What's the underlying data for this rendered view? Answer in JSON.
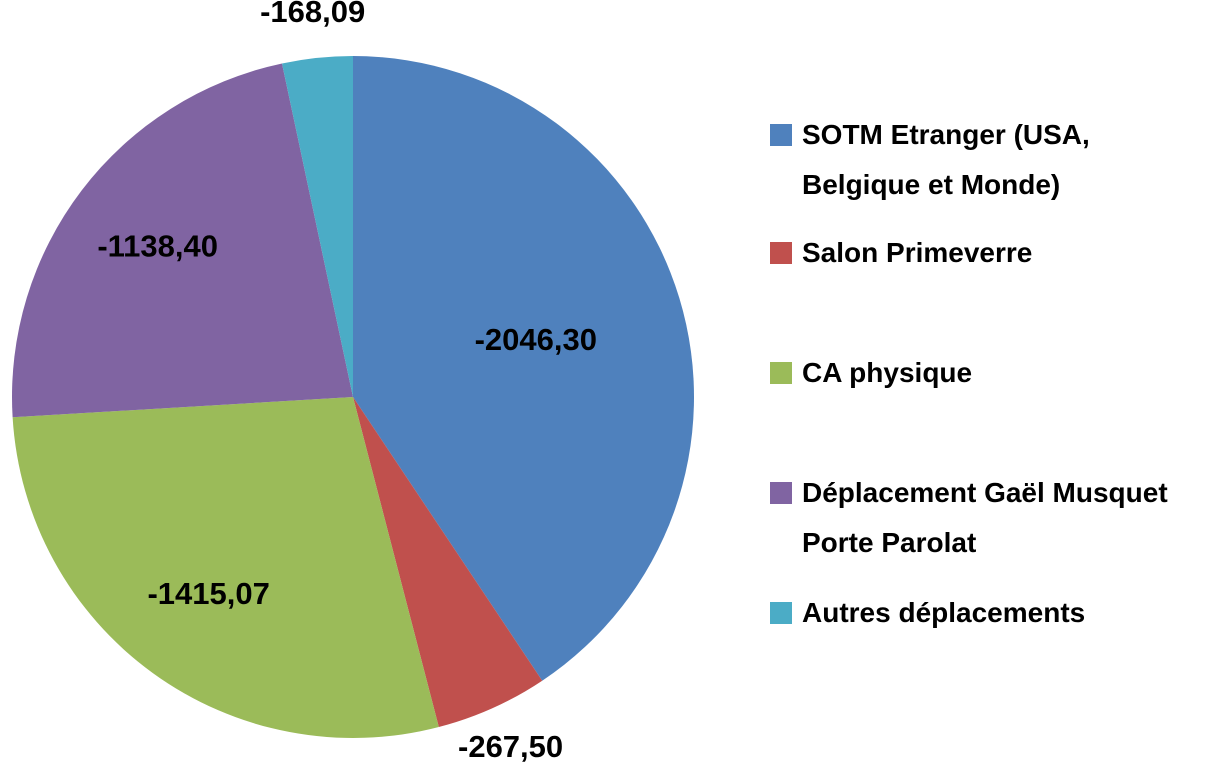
{
  "chart_data": {
    "type": "pie",
    "categories": [
      "SOTM Etranger (USA, Belgique et Monde)",
      "Salon Primeverre",
      "CA physique",
      "Déplacement Gaël Musquet Porte Parolat",
      "Autres déplacements"
    ],
    "values": [
      -2046.3,
      -267.5,
      -1415.07,
      -1138.4,
      -168.09
    ],
    "value_labels": [
      "-2046,30",
      "-267,50",
      "-1415,07",
      "-1138,40",
      "-168,09"
    ],
    "colors": [
      "#4f81bd",
      "#c0504d",
      "#9bbb59",
      "#8064a2",
      "#4bacc6"
    ],
    "legend": "right"
  }
}
